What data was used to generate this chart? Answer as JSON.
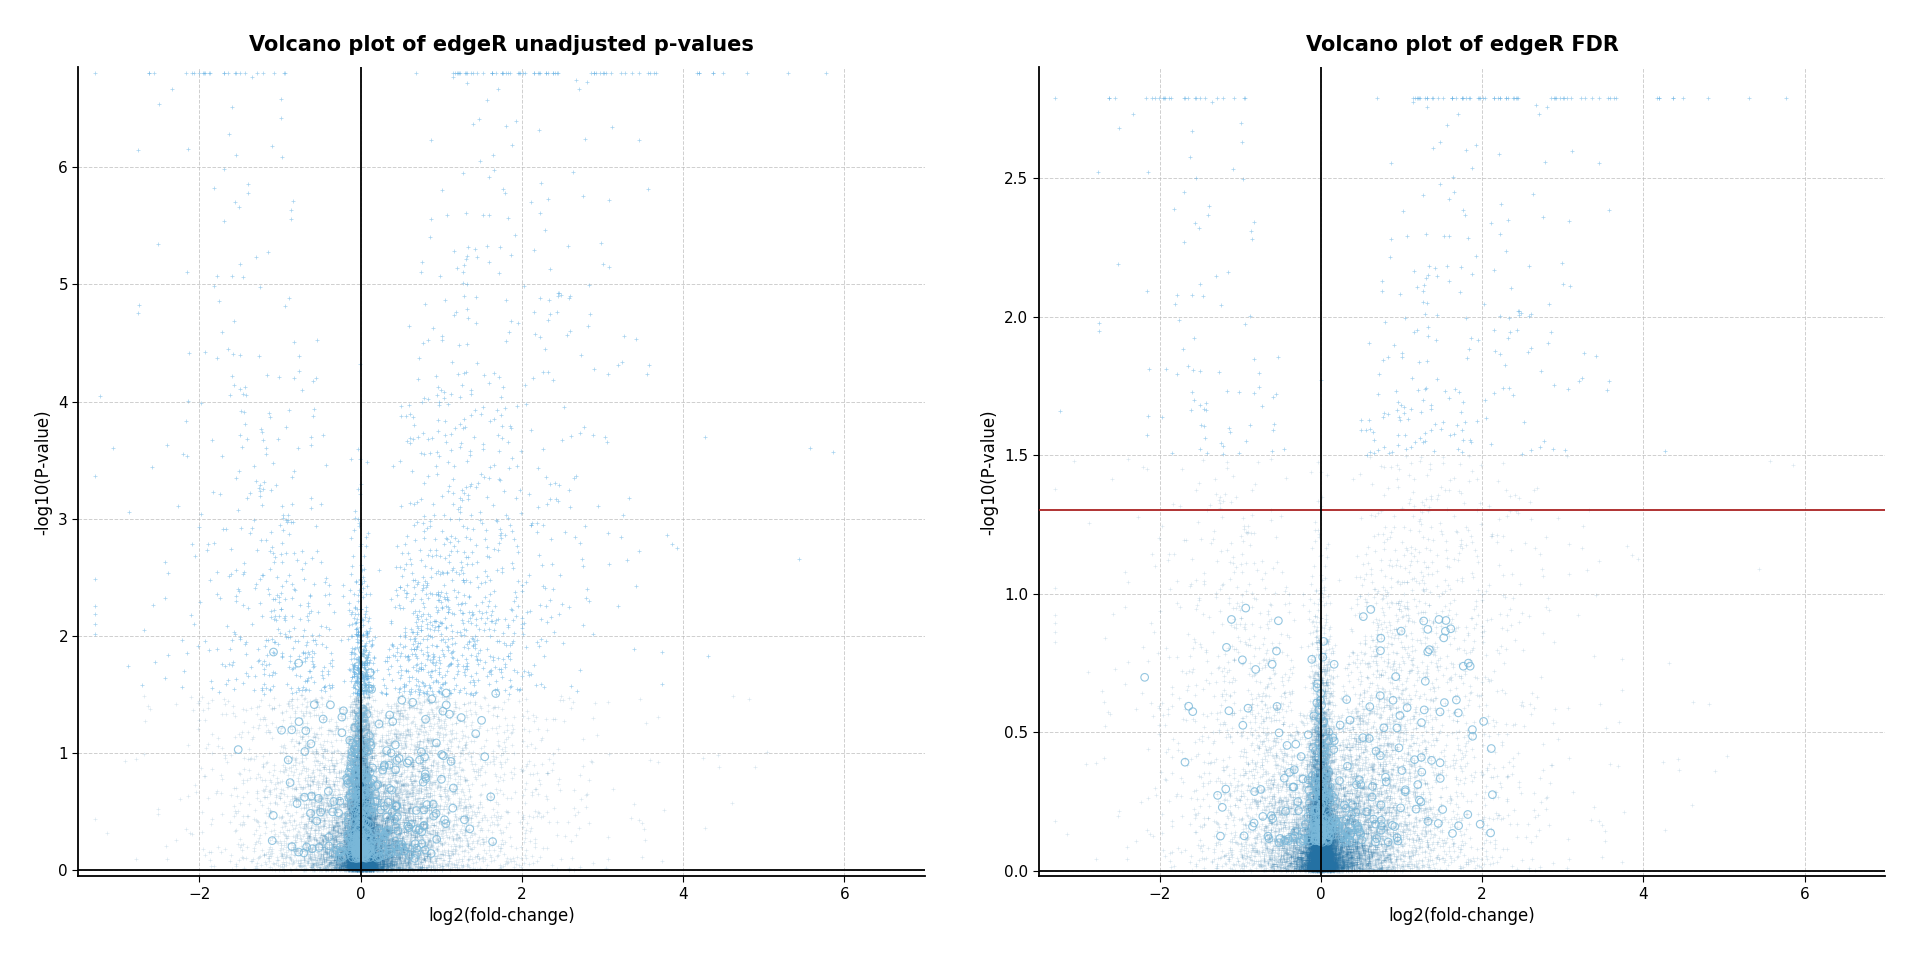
{
  "title_left": "Volcano plot of edgeR unadjusted p-values",
  "title_right": "Volcano plot of edgeR FDR",
  "xlabel": "log2(fold-change)",
  "ylabel": "-log10(P-value)",
  "xlim_left": [
    -3.5,
    7.0
  ],
  "xlim_right": [
    -3.5,
    7.0
  ],
  "ylim_left": [
    -0.05,
    6.85
  ],
  "ylim_right": [
    -0.02,
    2.9
  ],
  "yticks_left": [
    0,
    1,
    2,
    3,
    4,
    5,
    6
  ],
  "yticks_right": [
    0.0,
    0.5,
    1.0,
    1.5,
    2.0,
    2.5
  ],
  "xticks": [
    -2,
    0,
    2,
    4,
    6
  ],
  "fdr_threshold_line": 1.301,
  "plus_color": "#7ab8d9",
  "circle_color": "#7ab8d9",
  "dense_color": "#1a5276",
  "line_color_red": "#aa2222",
  "background_color": "#ffffff",
  "grid_color": "#bbbbbb",
  "title_fontsize": 15,
  "axis_fontsize": 12,
  "tick_fontsize": 11,
  "n_main": 20000,
  "seed": 42
}
